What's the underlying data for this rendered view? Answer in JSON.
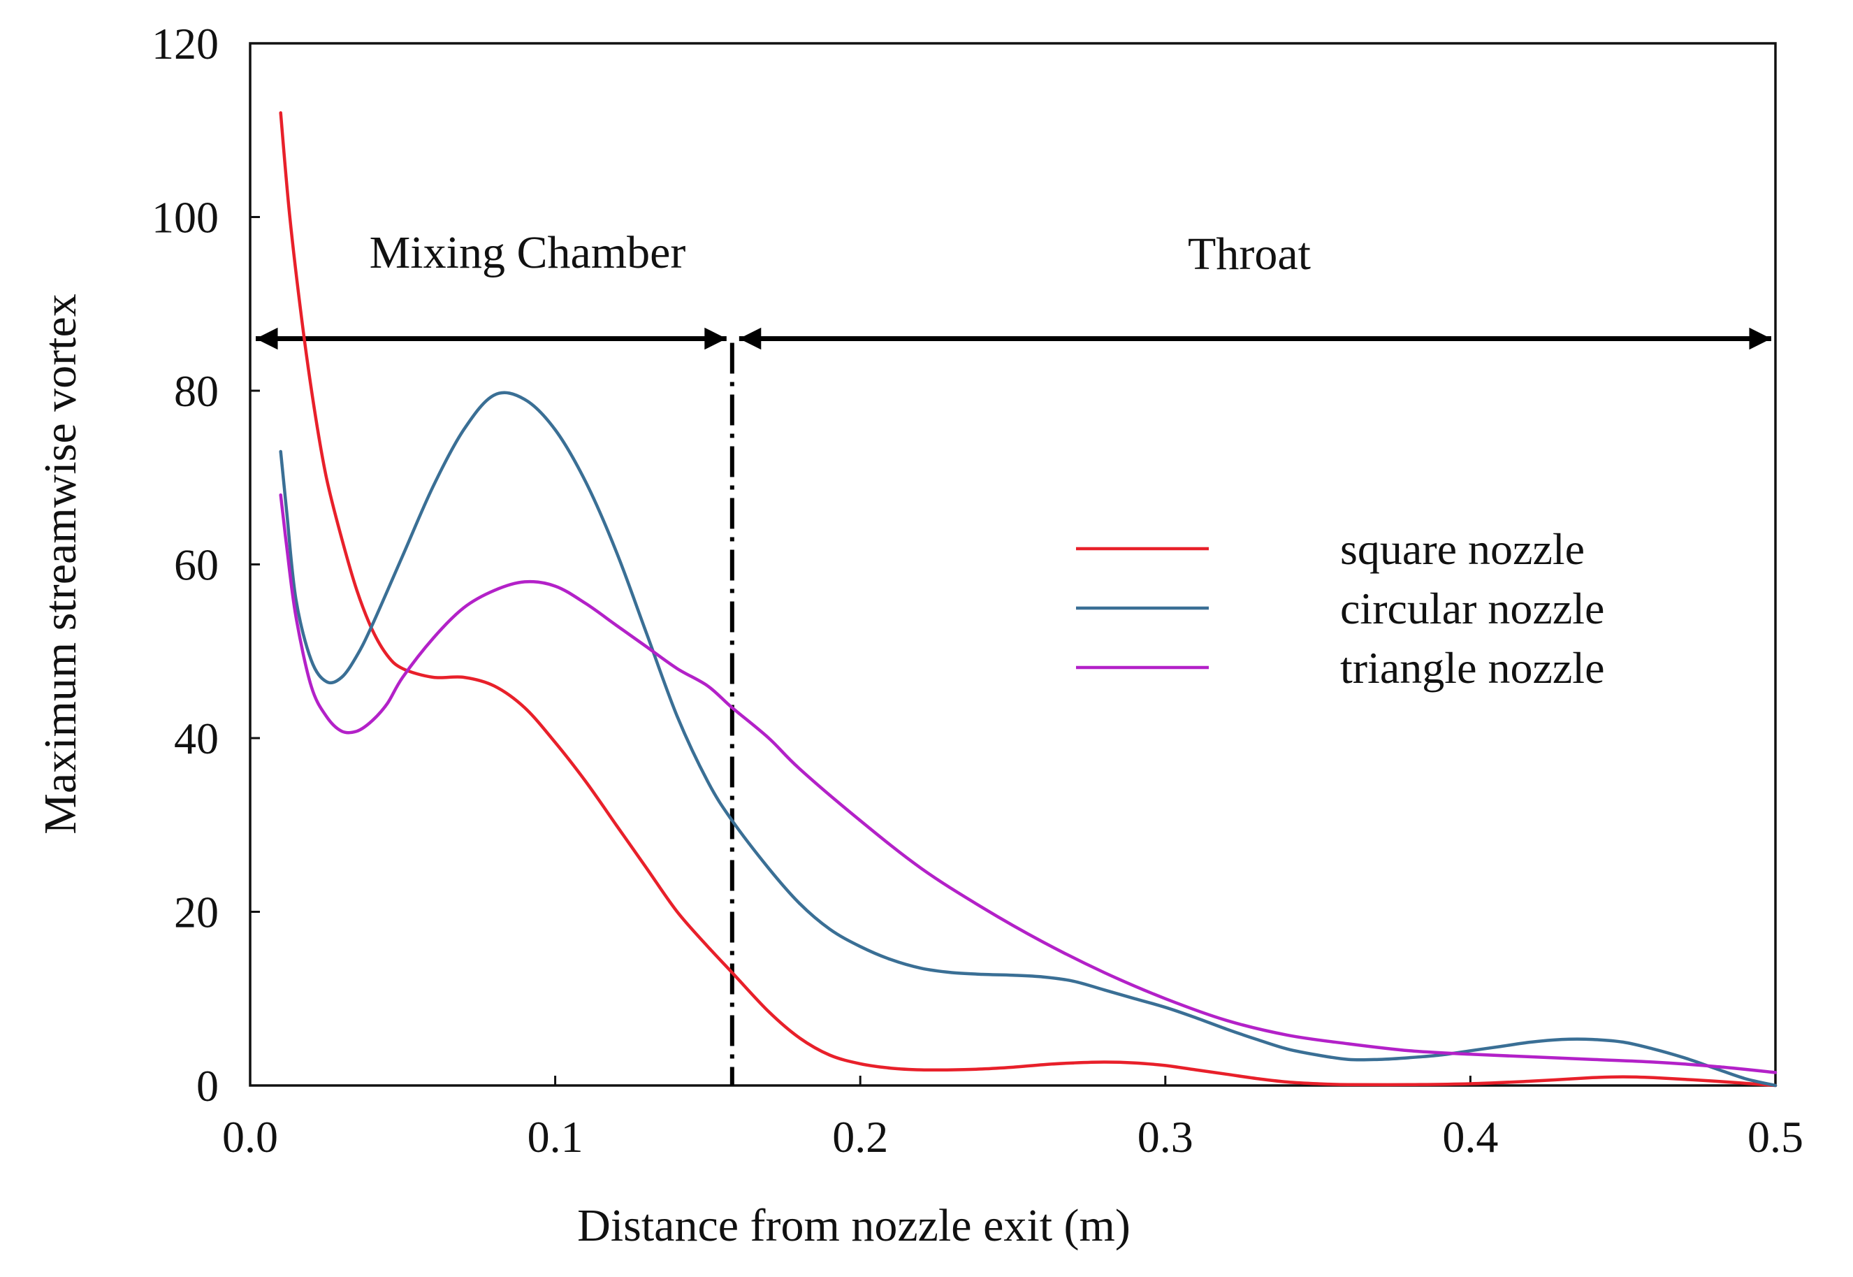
{
  "chart_data": {
    "type": "line",
    "title": "",
    "xlabel": "Distance from nozzle exit (m)",
    "ylabel": "Maximum streamwise vortex",
    "xlim": [
      0.0,
      0.5
    ],
    "ylim": [
      0,
      120
    ],
    "xticks": [
      0.0,
      0.1,
      0.2,
      0.3,
      0.4,
      0.5
    ],
    "xtick_labels": [
      "0.0",
      "0.1",
      "0.2",
      "0.3",
      "0.4",
      "0.5"
    ],
    "yticks": [
      0,
      20,
      40,
      60,
      80,
      100,
      120
    ],
    "ytick_labels": [
      "0",
      "20",
      "40",
      "60",
      "80",
      "100",
      "120"
    ],
    "grid": false,
    "legend_position": "center-right",
    "regions": {
      "arrow_y": 86,
      "boundary_x": 0.158,
      "left_label": "Mixing Chamber",
      "right_label": "Throat"
    },
    "series": [
      {
        "name": "square nozzle",
        "color": "#e8202a",
        "x": [
          0.01,
          0.013,
          0.017,
          0.021,
          0.025,
          0.03,
          0.035,
          0.04,
          0.045,
          0.05,
          0.06,
          0.07,
          0.08,
          0.09,
          0.1,
          0.11,
          0.12,
          0.13,
          0.14,
          0.15,
          0.158,
          0.17,
          0.18,
          0.19,
          0.2,
          0.21,
          0.22,
          0.23,
          0.24,
          0.25,
          0.26,
          0.27,
          0.28,
          0.29,
          0.3,
          0.31,
          0.32,
          0.33,
          0.34,
          0.35,
          0.36,
          0.38,
          0.4,
          0.42,
          0.44,
          0.45,
          0.46,
          0.48,
          0.5
        ],
        "y": [
          112,
          100,
          88,
          78,
          70,
          63,
          57,
          52.5,
          49.5,
          48,
          47,
          47,
          46,
          43.5,
          39.5,
          35,
          30,
          25,
          20,
          16,
          13,
          8.5,
          5.5,
          3.5,
          2.5,
          2,
          1.8,
          1.8,
          1.9,
          2.1,
          2.4,
          2.6,
          2.7,
          2.6,
          2.3,
          1.8,
          1.3,
          0.8,
          0.4,
          0.2,
          0.1,
          0.1,
          0.2,
          0.5,
          0.9,
          1.0,
          0.9,
          0.5,
          0
        ]
      },
      {
        "name": "circular nozzle",
        "color": "#3a6f95",
        "x": [
          0.01,
          0.012,
          0.015,
          0.02,
          0.025,
          0.03,
          0.035,
          0.04,
          0.05,
          0.06,
          0.07,
          0.08,
          0.09,
          0.1,
          0.11,
          0.12,
          0.13,
          0.14,
          0.15,
          0.158,
          0.17,
          0.18,
          0.19,
          0.2,
          0.21,
          0.22,
          0.23,
          0.24,
          0.25,
          0.26,
          0.27,
          0.28,
          0.29,
          0.3,
          0.31,
          0.32,
          0.33,
          0.34,
          0.35,
          0.36,
          0.37,
          0.38,
          0.39,
          0.4,
          0.41,
          0.42,
          0.43,
          0.44,
          0.45,
          0.46,
          0.47,
          0.48,
          0.49,
          0.5
        ],
        "y": [
          73,
          66,
          56,
          49,
          46.5,
          47,
          49.5,
          53,
          61,
          69,
          75.5,
          79.5,
          79,
          75.5,
          69.5,
          61.5,
          52,
          42.5,
          35,
          30.5,
          25,
          21,
          18,
          16,
          14.5,
          13.5,
          13,
          12.8,
          12.7,
          12.5,
          12,
          11,
          10,
          9,
          7.8,
          6.5,
          5.3,
          4.2,
          3.5,
          3,
          3,
          3.2,
          3.5,
          4,
          4.5,
          5,
          5.3,
          5.3,
          5,
          4.2,
          3.2,
          2,
          0.8,
          0
        ]
      },
      {
        "name": "triangle nozzle",
        "color": "#b321c8",
        "x": [
          0.01,
          0.012,
          0.015,
          0.02,
          0.025,
          0.03,
          0.035,
          0.04,
          0.045,
          0.05,
          0.06,
          0.07,
          0.08,
          0.09,
          0.1,
          0.11,
          0.12,
          0.13,
          0.14,
          0.15,
          0.158,
          0.17,
          0.18,
          0.2,
          0.22,
          0.24,
          0.26,
          0.28,
          0.3,
          0.32,
          0.34,
          0.36,
          0.38,
          0.4,
          0.42,
          0.44,
          0.46,
          0.48,
          0.5
        ],
        "y": [
          68,
          62,
          54,
          46,
          42.5,
          40.8,
          40.8,
          42,
          44,
          47,
          51.5,
          55,
          57,
          58,
          57.5,
          55.5,
          53,
          50.5,
          48,
          46,
          43.5,
          40,
          36.5,
          30.5,
          25,
          20.5,
          16.5,
          13,
          10,
          7.5,
          5.8,
          4.8,
          4,
          3.6,
          3.3,
          3,
          2.7,
          2.2,
          1.5
        ]
      }
    ]
  }
}
